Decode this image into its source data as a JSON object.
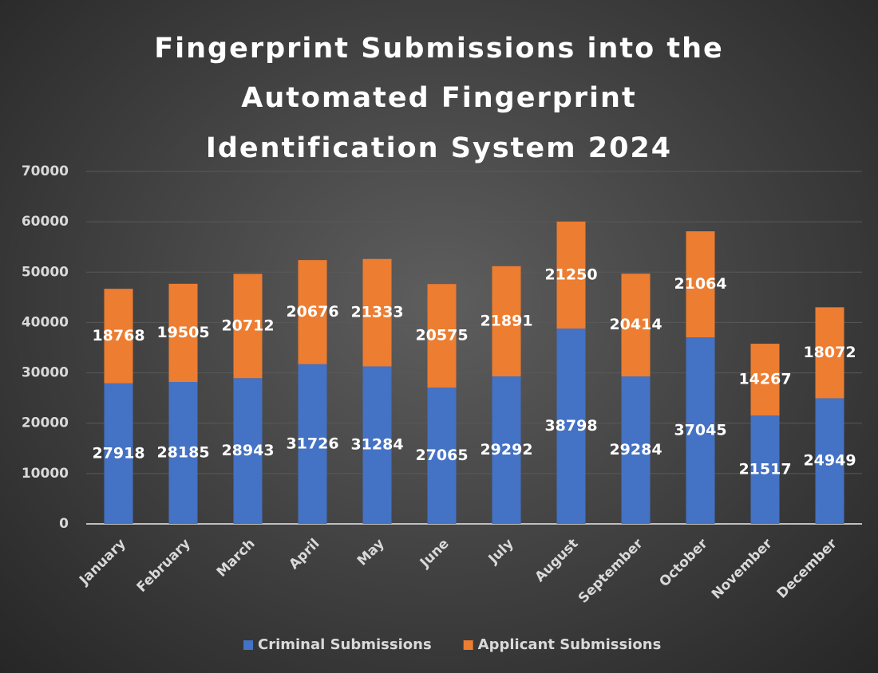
{
  "chart_data": {
    "type": "stacked_bar",
    "title": "Fingerprint Submissions into the Automated Fingerprint Identification System 2024",
    "categories": [
      "January",
      "February",
      "March",
      "April",
      "May",
      "June",
      "July",
      "August",
      "September",
      "October",
      "November",
      "December"
    ],
    "series": [
      {
        "name": "Criminal Submissions",
        "color": "#4472c4",
        "values": [
          27918,
          28185,
          28943,
          31726,
          31284,
          27065,
          29292,
          38798,
          29284,
          37045,
          21517,
          24949
        ]
      },
      {
        "name": "Applicant Submissions",
        "color": "#ed7d31",
        "values": [
          18768,
          19505,
          20712,
          20676,
          21333,
          20575,
          21891,
          21250,
          20414,
          21064,
          14267,
          18072
        ]
      }
    ],
    "ylim": [
      0,
      70000
    ],
    "yticks": [
      0,
      10000,
      20000,
      30000,
      40000,
      50000,
      60000,
      70000
    ],
    "grid": true,
    "legend": "bottom"
  }
}
